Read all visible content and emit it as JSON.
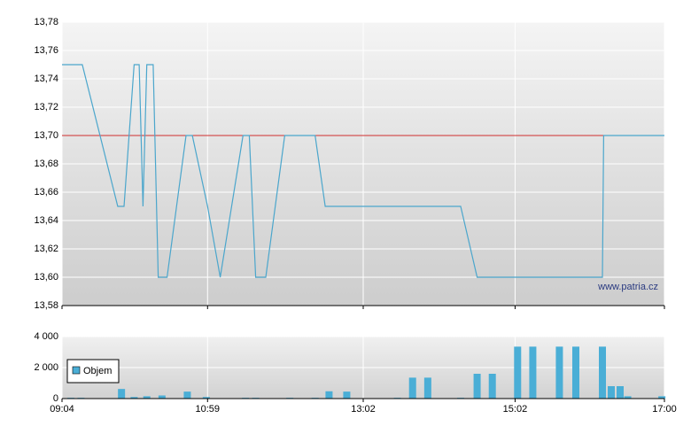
{
  "chart_data": [
    {
      "type": "line",
      "color": "#4ba6cc",
      "x": [
        544,
        560,
        588,
        593,
        601,
        605,
        608,
        611,
        616,
        620,
        627,
        642,
        647,
        659,
        669,
        687,
        692,
        697,
        705,
        720,
        744,
        752,
        859,
        872,
        971,
        972,
        1020
      ],
      "values": [
        13.75,
        13.75,
        13.65,
        13.65,
        13.75,
        13.75,
        13.65,
        13.75,
        13.75,
        13.6,
        13.6,
        13.7,
        13.7,
        13.65,
        13.6,
        13.7,
        13.7,
        13.6,
        13.6,
        13.7,
        13.7,
        13.65,
        13.65,
        13.6,
        13.6,
        13.7,
        13.7
      ],
      "reference_line": 13.7,
      "reference_color": "#d03030",
      "xlim": [
        544,
        1020
      ],
      "ylim": [
        13.58,
        13.78
      ],
      "yticks": [
        {
          "value": 13.58,
          "label": "13,58"
        },
        {
          "value": 13.6,
          "label": "13,60"
        },
        {
          "value": 13.62,
          "label": "13,62"
        },
        {
          "value": 13.64,
          "label": "13,64"
        },
        {
          "value": 13.66,
          "label": "13,66"
        },
        {
          "value": 13.68,
          "label": "13,68"
        },
        {
          "value": 13.7,
          "label": "13,70"
        },
        {
          "value": 13.72,
          "label": "13,72"
        },
        {
          "value": 13.74,
          "label": "13,74"
        },
        {
          "value": 13.76,
          "label": "13,76"
        },
        {
          "value": 13.78,
          "label": "13,78"
        }
      ],
      "source_label": "www.patria.cz",
      "grid": true
    },
    {
      "type": "bar",
      "x": [
        551,
        559,
        591,
        601,
        611,
        623,
        643,
        658,
        689,
        697,
        724,
        744,
        755,
        769,
        809,
        821,
        833,
        859,
        872,
        884,
        904,
        916,
        937,
        950,
        971,
        978,
        985,
        991,
        1018
      ],
      "series": [
        {
          "name": "Objem",
          "color": "#4aaed6",
          "values": [
            50,
            50,
            620,
            100,
            150,
            200,
            450,
            100,
            50,
            50,
            50,
            50,
            470,
            450,
            50,
            1350,
            1350,
            50,
            1600,
            1600,
            3350,
            3350,
            3350,
            3350,
            3350,
            800,
            800,
            150,
            150
          ]
        }
      ],
      "xlim": [
        544,
        1020
      ],
      "ylim": [
        0,
        4000
      ],
      "yticks": [
        0,
        {
          "value": 2000,
          "label": "2 000"
        },
        {
          "value": 4000,
          "label": "4 000"
        }
      ],
      "xticks": [
        {
          "value": 544,
          "label": "09:04"
        },
        {
          "value": 659,
          "label": "10:59"
        },
        {
          "value": 782,
          "label": "13:02"
        },
        {
          "value": 902,
          "label": "15:02"
        },
        {
          "value": 1020,
          "label": "17:00"
        }
      ],
      "grid": true
    }
  ]
}
